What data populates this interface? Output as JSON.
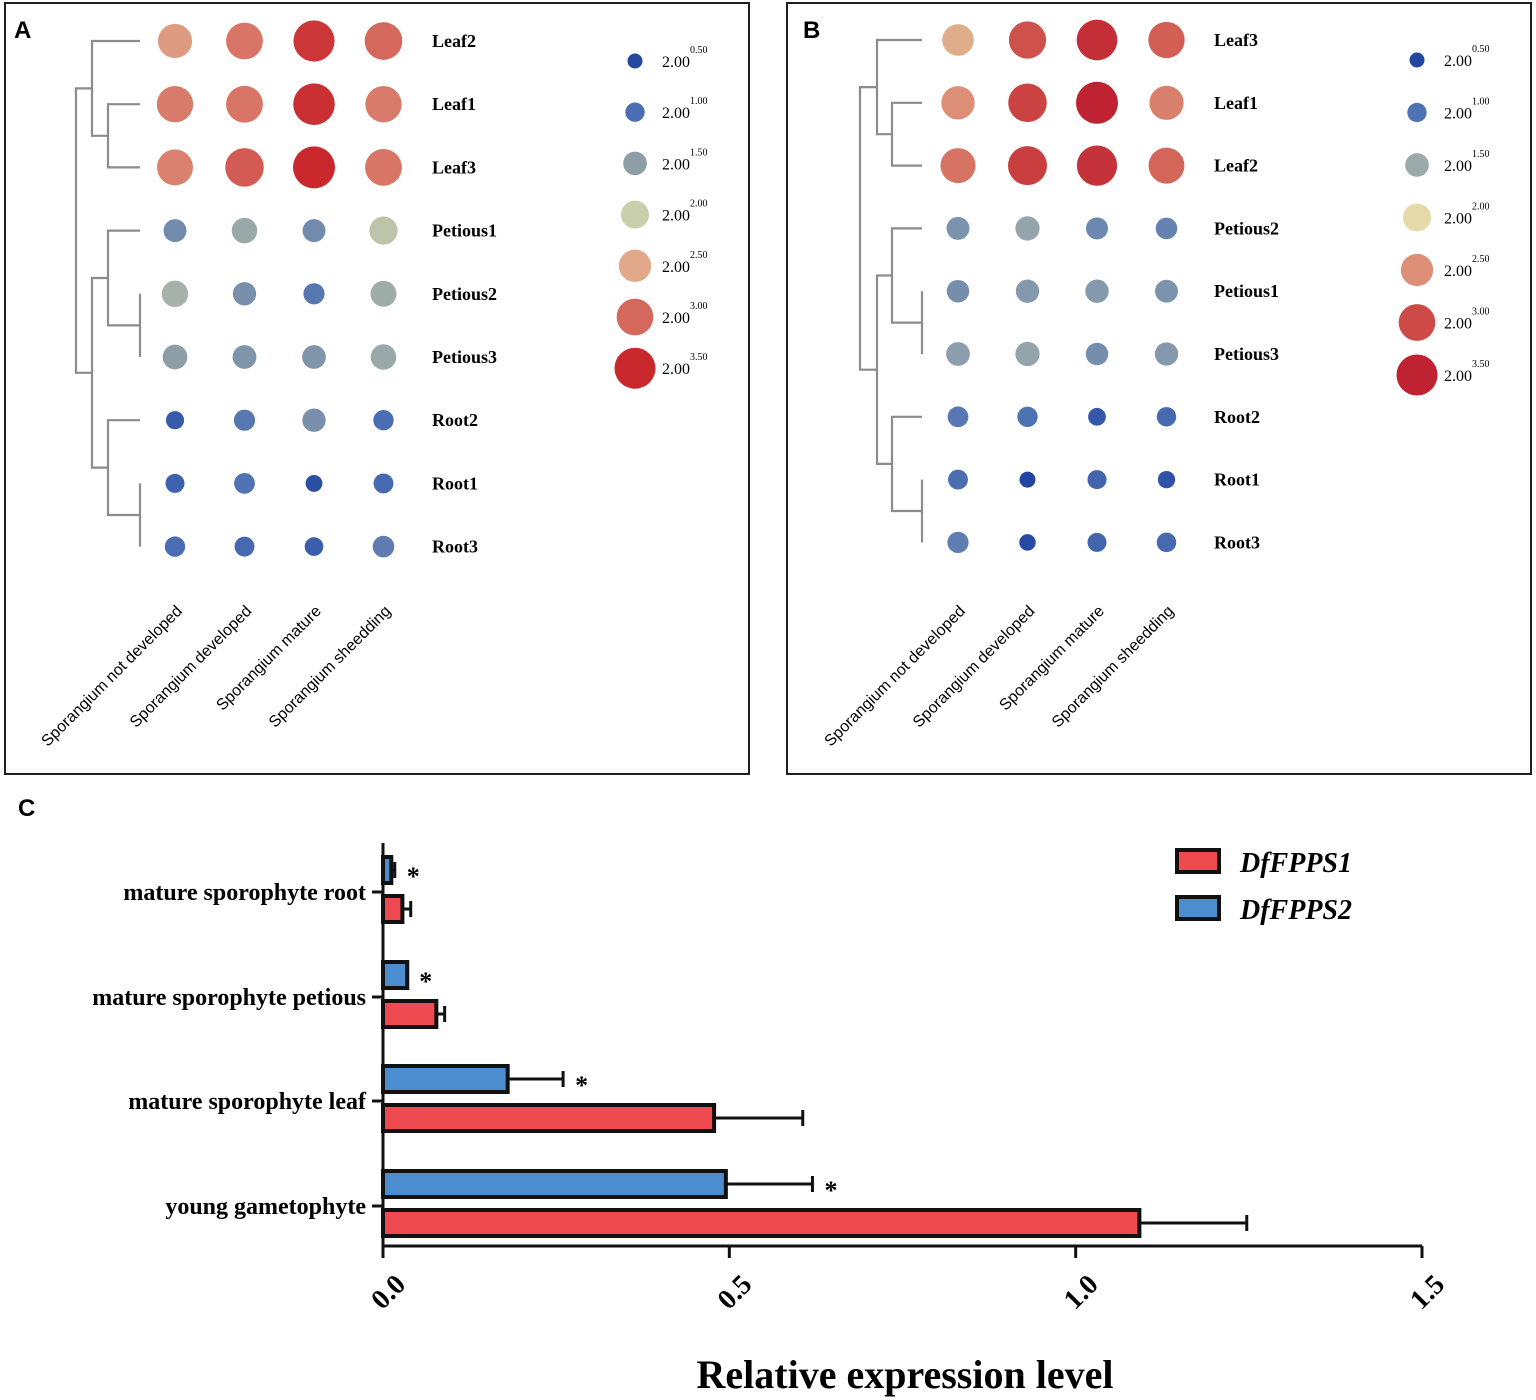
{
  "chart_data": [
    {
      "panel": "A",
      "type": "bubble-heatmap",
      "columns": [
        "Sporangium not developed",
        "Sporangium developed",
        "Sporangium mature",
        "Sporangium sheedding"
      ],
      "rows": [
        {
          "label": "Leaf2",
          "values": [
            2.6,
            2.9,
            3.4,
            3.0
          ]
        },
        {
          "label": "Leaf1",
          "values": [
            2.85,
            2.9,
            3.45,
            2.85
          ]
        },
        {
          "label": "Leaf3",
          "values": [
            2.8,
            3.1,
            3.5,
            2.9
          ]
        },
        {
          "label": "Petious1",
          "values": [
            1.3,
            1.6,
            1.3,
            1.9
          ]
        },
        {
          "label": "Petious2",
          "values": [
            1.7,
            1.35,
            1.1,
            1.65
          ]
        },
        {
          "label": "Petious3",
          "values": [
            1.5,
            1.4,
            1.4,
            1.6
          ]
        },
        {
          "label": "Root2",
          "values": [
            0.75,
            1.1,
            1.35,
            1.0
          ]
        },
        {
          "label": "Root1",
          "values": [
            0.85,
            1.05,
            0.6,
            0.95
          ]
        },
        {
          "label": "Root3",
          "values": [
            1.0,
            0.95,
            0.8,
            1.15
          ]
        }
      ],
      "legend": {
        "base": "2.00",
        "exponents": [
          "0.50",
          "1.00",
          "1.50",
          "2.00",
          "2.50",
          "3.00",
          "3.50"
        ],
        "colors": [
          "#2547a0",
          "#4a6db4",
          "#8d9ea7",
          "#c9ceab",
          "#e2a88a",
          "#d5685d",
          "#c9292c"
        ]
      }
    },
    {
      "panel": "B",
      "type": "bubble-heatmap",
      "columns": [
        "Sporangium not developed",
        "Sporangium developed",
        "Sporangium mature",
        "Sporangium sheedding"
      ],
      "rows": [
        {
          "label": "Leaf3",
          "values": [
            2.3,
            2.95,
            3.35,
            2.85
          ]
        },
        {
          "label": "Leaf1",
          "values": [
            2.5,
            3.1,
            3.5,
            2.6
          ]
        },
        {
          "label": "Leaf2",
          "values": [
            2.7,
            3.15,
            3.3,
            2.8
          ]
        },
        {
          "label": "Petious2",
          "values": [
            1.3,
            1.45,
            1.2,
            1.15
          ]
        },
        {
          "label": "Petious1",
          "values": [
            1.25,
            1.35,
            1.35,
            1.3
          ]
        },
        {
          "label": "Petious3",
          "values": [
            1.4,
            1.45,
            1.25,
            1.35
          ]
        },
        {
          "label": "Root2",
          "values": [
            1.05,
            1.0,
            0.7,
            0.9
          ]
        },
        {
          "label": "Root1",
          "values": [
            0.95,
            0.5,
            0.85,
            0.65
          ]
        },
        {
          "label": "Root3",
          "values": [
            1.1,
            0.55,
            0.85,
            0.9
          ]
        }
      ],
      "legend": {
        "base": "2.00",
        "exponents": [
          "0.50",
          "1.00",
          "1.50",
          "2.00",
          "2.50",
          "3.00",
          "3.50"
        ],
        "colors": [
          "#2245a2",
          "#4f72b3",
          "#9aa9a9",
          "#e6dba8",
          "#dc8e76",
          "#ce4a46",
          "#bf2230"
        ]
      }
    },
    {
      "panel": "C",
      "type": "bar",
      "orientation": "horizontal",
      "categories": [
        "mature sporophyte root",
        "mature sporophyte petious",
        "mature sporophyte leaf",
        "young gametophyte"
      ],
      "series": [
        {
          "name": "DfFPPS2",
          "color": "#4c8dd0",
          "values": [
            0.012,
            0.035,
            0.18,
            0.495
          ],
          "errors": [
            0.005,
            0.0,
            0.08,
            0.125
          ],
          "significance": [
            "*",
            "*",
            "*",
            "*"
          ]
        },
        {
          "name": "DfFPPS1",
          "color": "#ee4a4f",
          "values": [
            0.028,
            0.077,
            0.478,
            1.092
          ],
          "errors": [
            0.012,
            0.012,
            0.128,
            0.155
          ]
        }
      ],
      "xlim": [
        0,
        1.5
      ],
      "xticks": [
        "0.0",
        "0.5",
        "1.0",
        "1.5"
      ],
      "xlabel": "Relative expression level",
      "legend_position": "top-right"
    }
  ]
}
